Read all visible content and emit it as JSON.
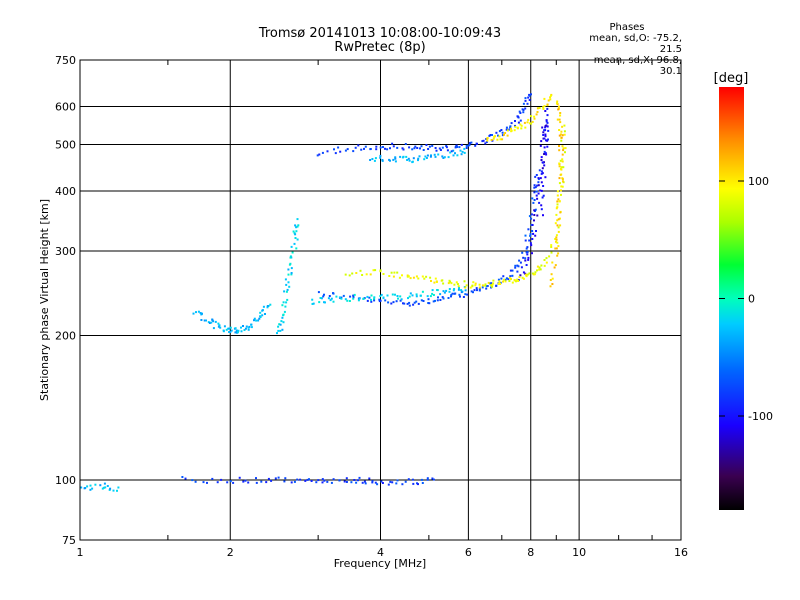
{
  "header": {
    "title": "Tromsø 20141013 10:08:00-10:09:43",
    "subtitle": "RwPretec (8p)"
  },
  "phase_box": {
    "heading": "Phases",
    "line1": "mean, sd,O: -75.2, 21.5",
    "line2": "mean, sd,X: 96.8, 30.1"
  },
  "colorbar": {
    "label": "[deg]",
    "ticks": [
      "100",
      "0",
      "-100"
    ],
    "tick_values": [
      100,
      0,
      -100
    ],
    "range": [
      -180,
      180
    ]
  },
  "chart_data": {
    "type": "scatter",
    "title": "Tromsø 20141013 10:08:00-10:09:43",
    "subtitle": "RwPretec (8p)",
    "xlabel": "Frequency [MHz]",
    "ylabel": "Stationary phase Virtual Height [km]",
    "xscale": "log",
    "yscale": "log",
    "xlim": [
      1,
      16
    ],
    "ylim": [
      75,
      750
    ],
    "xticks": [
      1,
      2,
      4,
      6,
      8,
      10,
      16
    ],
    "xtick_labels": [
      "1",
      "2",
      "4",
      "6",
      "8",
      "10",
      "16"
    ],
    "yticks": [
      75,
      100,
      200,
      300,
      400,
      500,
      600,
      750
    ],
    "ytick_labels": [
      "75",
      "100",
      "200",
      "300",
      "400",
      "500",
      "600",
      "750"
    ],
    "grid": true,
    "color_encoding": "phase [deg]",
    "traces": [
      {
        "part": "F2 O-mode lower",
        "phase": -75,
        "points": [
          [
            3.0,
            245
          ],
          [
            3.5,
            240
          ],
          [
            4.0,
            235
          ],
          [
            4.5,
            234
          ],
          [
            5.0,
            236
          ],
          [
            5.5,
            240
          ],
          [
            6.0,
            245
          ],
          [
            6.5,
            252
          ],
          [
            7.0,
            260
          ],
          [
            7.5,
            275
          ],
          [
            7.8,
            300
          ],
          [
            8.0,
            340
          ],
          [
            8.2,
            400
          ],
          [
            8.3,
            440
          ]
        ]
      },
      {
        "part": "F2 O-mode upper (steep)",
        "phase": -110,
        "points": [
          [
            7.6,
            260
          ],
          [
            8.0,
            300
          ],
          [
            8.2,
            360
          ],
          [
            8.4,
            440
          ],
          [
            8.5,
            520
          ],
          [
            8.55,
            560
          ]
        ]
      },
      {
        "part": "F2 lower band",
        "phase": -20,
        "points": [
          [
            2.9,
            235
          ],
          [
            3.2,
            238
          ],
          [
            3.6,
            240
          ],
          [
            4.0,
            240
          ],
          [
            4.5,
            241
          ],
          [
            5.0,
            244
          ],
          [
            5.5,
            248
          ],
          [
            6.0,
            250
          ]
        ]
      },
      {
        "part": "F2 X-mode",
        "phase": 90,
        "points": [
          [
            3.4,
            270
          ],
          [
            4.0,
            270
          ],
          [
            4.5,
            266
          ],
          [
            5.0,
            262
          ],
          [
            5.5,
            258
          ],
          [
            6.0,
            255
          ],
          [
            6.5,
            255
          ],
          [
            7.0,
            258
          ],
          [
            7.5,
            262
          ],
          [
            8.0,
            268
          ],
          [
            8.5,
            280
          ],
          [
            9.0,
            320
          ],
          [
            9.2,
            400
          ],
          [
            9.3,
            480
          ],
          [
            9.3,
            560
          ]
        ]
      },
      {
        "part": "F2 X-mode upper",
        "phase": 110,
        "points": [
          [
            8.8,
            250
          ],
          [
            9.0,
            300
          ],
          [
            9.1,
            360
          ],
          [
            9.2,
            420
          ],
          [
            9.2,
            480
          ],
          [
            9.15,
            560
          ],
          [
            9.1,
            630
          ]
        ]
      },
      {
        "part": "Multiple echo O",
        "phase": -80,
        "points": [
          [
            3.0,
            480
          ],
          [
            3.5,
            490
          ],
          [
            4.0,
            495
          ],
          [
            4.5,
            495
          ],
          [
            5.0,
            492
          ],
          [
            5.5,
            490
          ],
          [
            6.0,
            495
          ],
          [
            6.5,
            510
          ],
          [
            7.0,
            530
          ],
          [
            7.5,
            560
          ],
          [
            7.8,
            600
          ],
          [
            8.0,
            640
          ]
        ]
      },
      {
        "part": "Multiple echo lower",
        "phase": -30,
        "points": [
          [
            3.8,
            470
          ],
          [
            4.2,
            465
          ],
          [
            4.6,
            465
          ],
          [
            5.0,
            470
          ],
          [
            5.5,
            478
          ],
          [
            6.0,
            485
          ]
        ]
      },
      {
        "part": "Multiple echo X",
        "phase": 100,
        "points": [
          [
            6.5,
            510
          ],
          [
            7.0,
            520
          ],
          [
            7.5,
            540
          ],
          [
            8.0,
            560
          ],
          [
            8.5,
            600
          ],
          [
            8.8,
            640
          ]
        ]
      },
      {
        "part": "Multiple echo X vertical",
        "phase": -100,
        "points": [
          [
            8.4,
            360
          ],
          [
            8.5,
            440
          ],
          [
            8.6,
            520
          ],
          [
            8.6,
            600
          ]
        ]
      },
      {
        "part": "F1 cusp rising",
        "phase": -20,
        "points": [
          [
            2.5,
            200
          ],
          [
            2.55,
            220
          ],
          [
            2.6,
            250
          ],
          [
            2.65,
            280
          ],
          [
            2.7,
            320
          ],
          [
            2.72,
            350
          ]
        ]
      },
      {
        "part": "Low F trace",
        "phase": -30,
        "points": [
          [
            1.7,
            225
          ],
          [
            1.8,
            215
          ],
          [
            1.9,
            208
          ],
          [
            2.0,
            205
          ],
          [
            2.1,
            206
          ],
          [
            2.2,
            210
          ],
          [
            2.3,
            220
          ],
          [
            2.4,
            235
          ]
        ]
      },
      {
        "part": "E/Es region",
        "phase": -80,
        "points": [
          [
            1.6,
            100
          ],
          [
            2.0,
            100
          ],
          [
            2.4,
            100
          ],
          [
            2.8,
            100
          ],
          [
            3.2,
            100
          ],
          [
            3.6,
            100
          ],
          [
            4.0,
            99
          ],
          [
            4.6,
            99
          ],
          [
            5.2,
            100
          ]
        ]
      },
      {
        "part": "Low frequency echoes",
        "phase": -30,
        "points": [
          [
            1.0,
            96
          ],
          [
            1.1,
            97
          ],
          [
            1.2,
            96
          ]
        ]
      }
    ]
  }
}
